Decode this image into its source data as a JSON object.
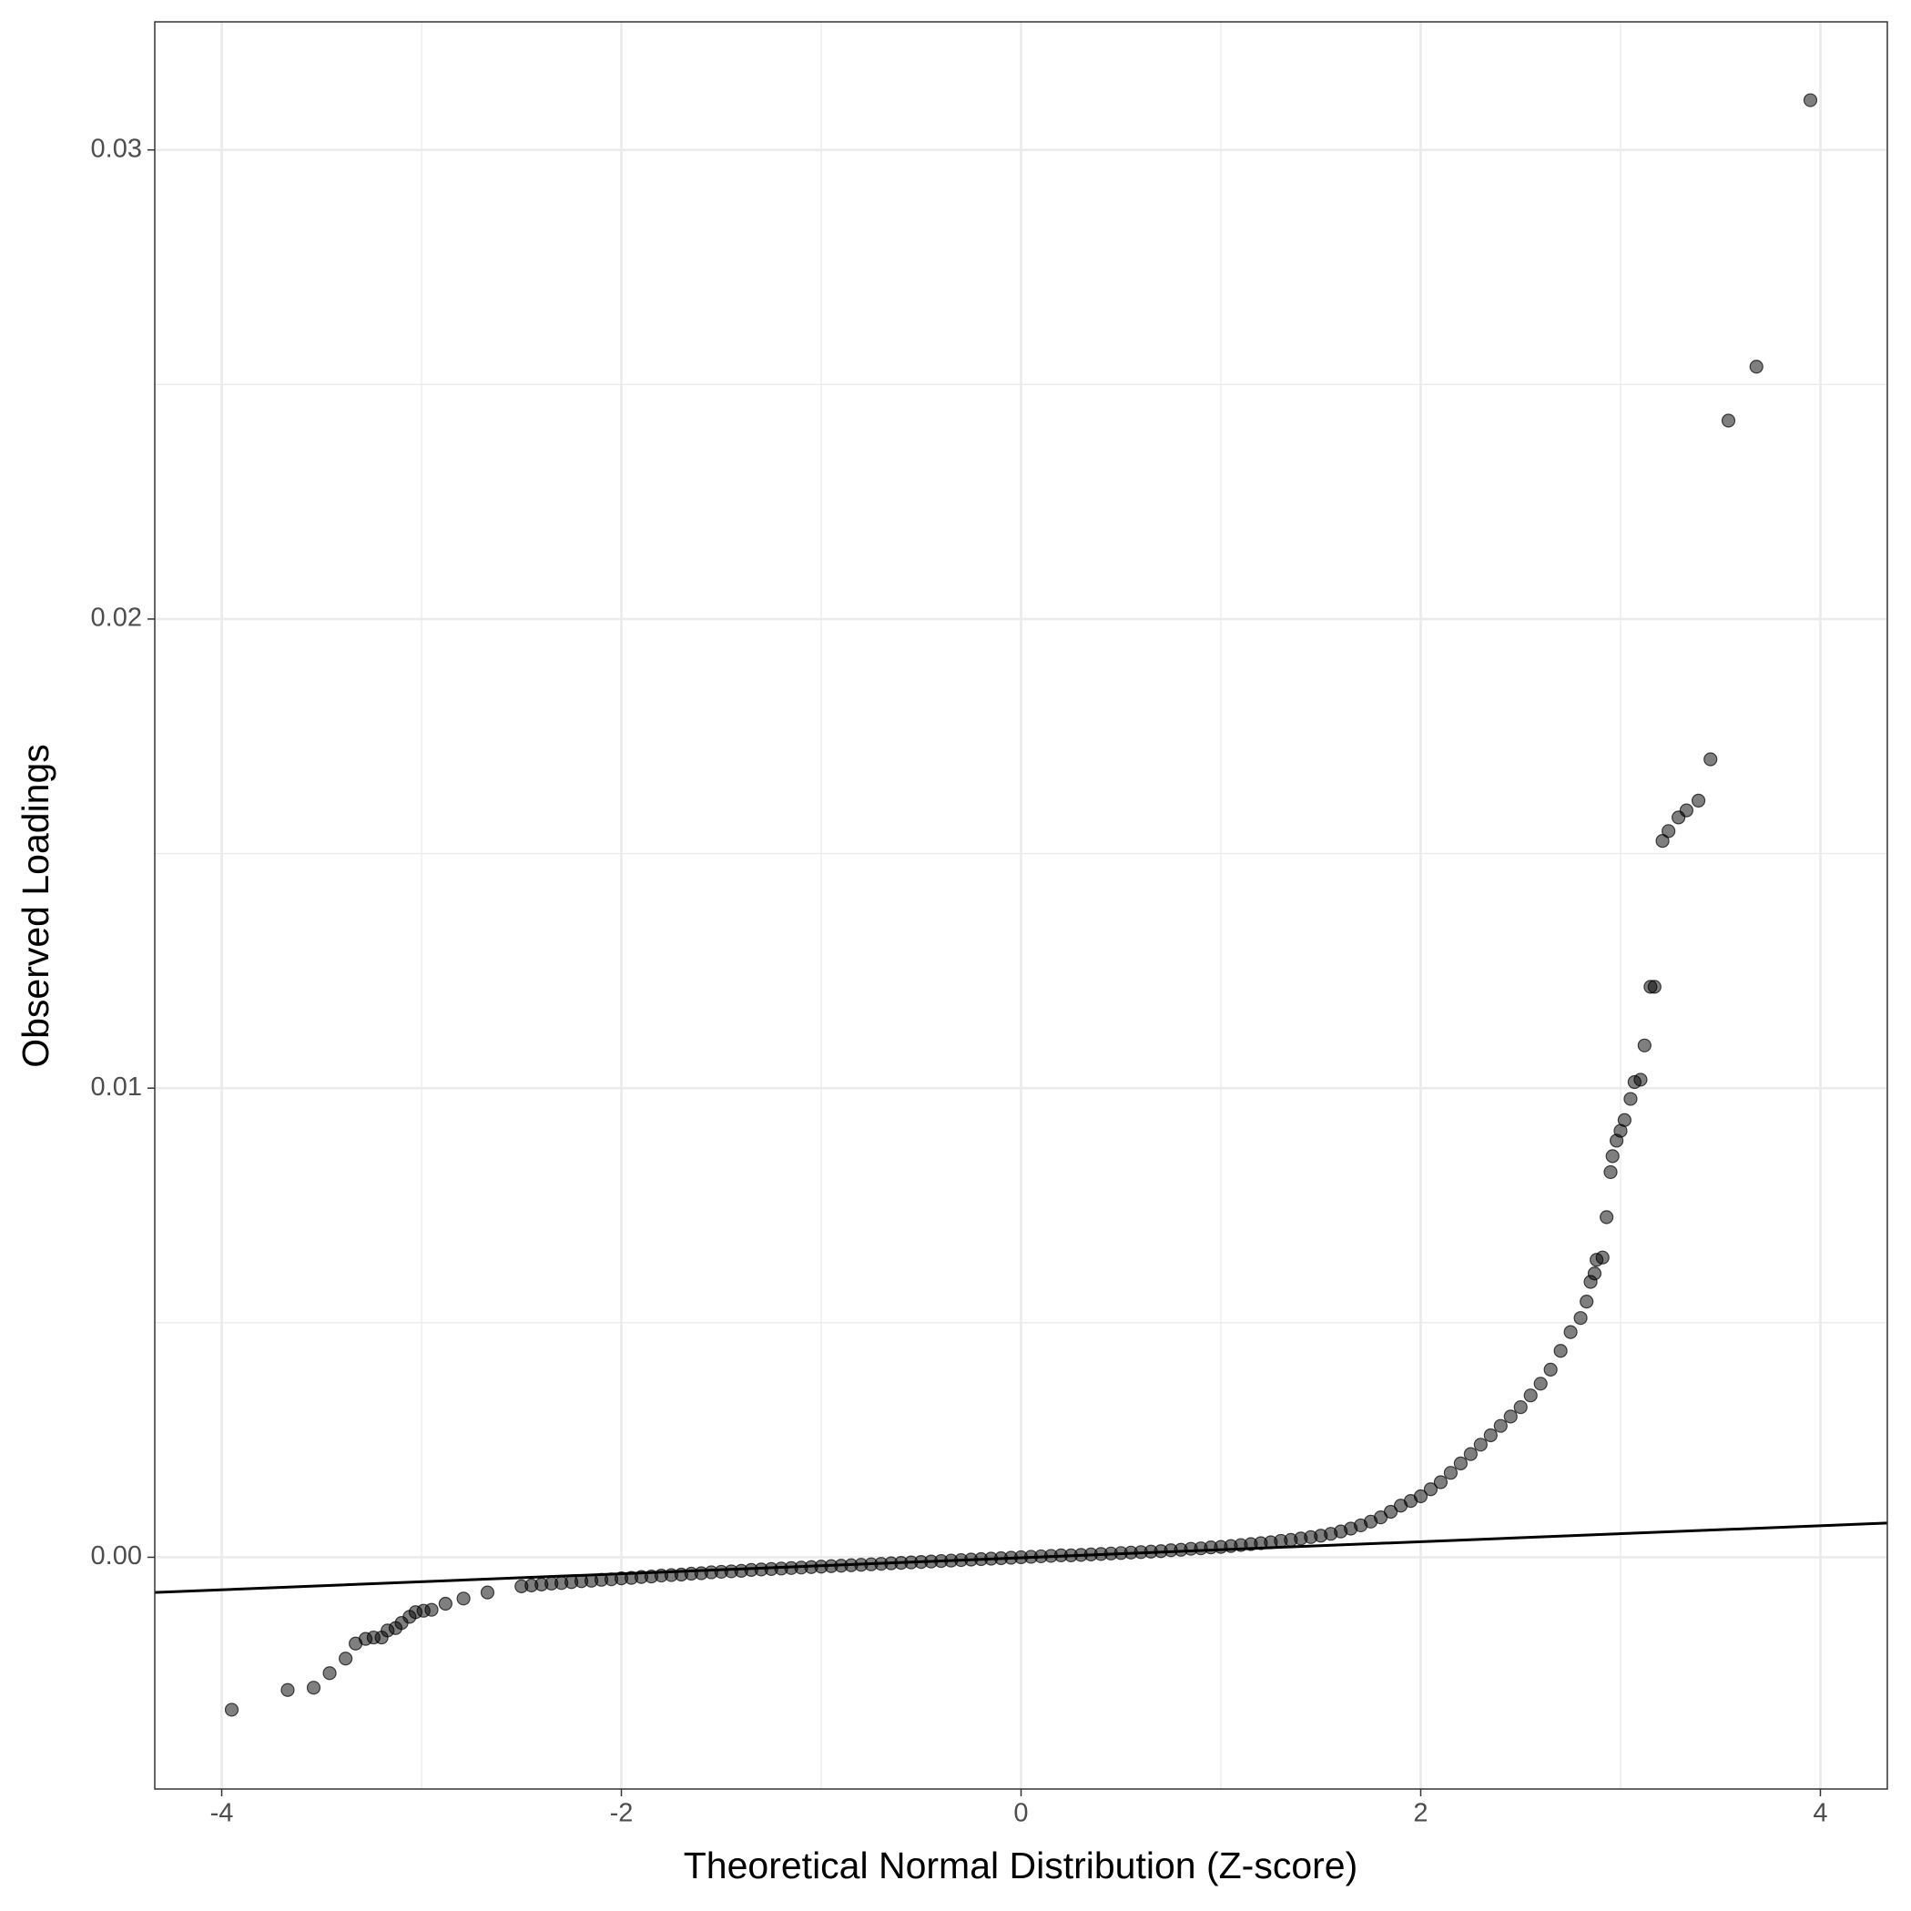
{
  "chart_data": {
    "type": "scatter",
    "x_label": "Theoretical Normal Distribution (Z-score)",
    "y_label": "Observed Loadings",
    "xlim": [
      -4.335,
      4.335
    ],
    "ylim": [
      -0.00494,
      0.03273
    ],
    "xticks": [
      -4,
      -2,
      0,
      2,
      4
    ],
    "yticks": [
      {
        "value": 0,
        "label": "0.00"
      },
      0.01,
      0.02,
      0.03
    ],
    "minor_xticks": [
      -3,
      -1,
      1,
      3
    ],
    "minor_yticks": [
      0.005,
      0.015,
      0.025
    ],
    "grid": true,
    "points": {
      "color": "#000000",
      "opacity": 0.5,
      "x": [
        -3.95,
        -3.67,
        -3.54,
        -3.46,
        -3.38,
        -3.33,
        -3.28,
        -3.24,
        -3.2,
        -3.17,
        -3.13,
        -3.1,
        -3.06,
        -3.03,
        -2.99,
        -2.95,
        -2.88,
        -2.79,
        -2.67,
        -2.5,
        -2.45,
        -2.4,
        -2.35,
        -2.3,
        -2.25,
        -2.2,
        -2.15,
        -2.1,
        -2.05,
        -2.0,
        -1.95,
        -1.9,
        -1.85,
        -1.8,
        -1.75,
        -1.7,
        -1.65,
        -1.6,
        -1.55,
        -1.5,
        -1.45,
        -1.4,
        -1.35,
        -1.3,
        -1.25,
        -1.2,
        -1.15,
        -1.1,
        -1.05,
        -1.0,
        -0.95,
        -0.9,
        -0.85,
        -0.8,
        -0.75,
        -0.7,
        -0.65,
        -0.6,
        -0.55,
        -0.5,
        -0.45,
        -0.4,
        -0.35,
        -0.3,
        -0.25,
        -0.2,
        -0.15,
        -0.1,
        -0.05,
        0.0,
        0.05,
        0.1,
        0.15,
        0.2,
        0.25,
        0.3,
        0.35,
        0.4,
        0.45,
        0.5,
        0.55,
        0.6,
        0.65,
        0.7,
        0.75,
        0.8,
        0.85,
        0.9,
        0.95,
        1.0,
        1.05,
        1.1,
        1.15,
        1.2,
        1.25,
        1.3,
        1.35,
        1.4,
        1.45,
        1.5,
        1.55,
        1.6,
        1.65,
        1.7,
        1.75,
        1.8,
        1.85,
        1.9,
        1.95,
        2.0,
        2.05,
        2.1,
        2.15,
        2.2,
        2.25,
        2.3,
        2.35,
        2.4,
        2.45,
        2.5,
        2.55,
        2.6,
        2.65,
        2.7,
        2.75,
        2.8,
        2.83,
        2.85,
        2.87,
        2.88,
        2.91,
        2.93,
        2.95,
        2.96,
        2.98,
        3.0,
        3.02,
        3.05,
        3.07,
        3.1,
        3.12,
        3.15,
        3.17,
        3.21,
        3.24,
        3.29,
        3.33,
        3.39,
        3.45,
        3.54,
        3.68,
        3.95
      ],
      "y": [
        -0.00325,
        -0.00283,
        -0.00278,
        -0.00247,
        -0.00216,
        -0.00184,
        -0.00174,
        -0.00171,
        -0.00171,
        -0.00156,
        -0.00151,
        -0.0014,
        -0.00127,
        -0.00117,
        -0.00114,
        -0.00112,
        -0.00099,
        -0.00088,
        -0.00075,
        -0.00062,
        -0.0006,
        -0.00058,
        -0.00056,
        -0.00055,
        -0.00053,
        -0.00051,
        -0.0005,
        -0.00048,
        -0.00047,
        -0.00045,
        -0.00044,
        -0.00042,
        -0.00041,
        -0.00039,
        -0.00038,
        -0.00037,
        -0.00035,
        -0.00034,
        -0.00032,
        -0.00031,
        -0.0003,
        -0.00029,
        -0.00027,
        -0.00026,
        -0.00025,
        -0.00024,
        -0.00023,
        -0.00022,
        -0.00021,
        -0.0002,
        -0.00019,
        -0.00018,
        -0.00017,
        -0.00016,
        -0.00015,
        -0.00014,
        -0.00013,
        -0.00012,
        -0.00011,
        -0.0001,
        -9e-05,
        -8e-05,
        -7e-05,
        -6e-05,
        -5e-05,
        -4e-05,
        -3e-05,
        -2e-05,
        -1e-05,
        0,
        1e-05,
        2e-05,
        3e-05,
        4e-05,
        4e-05,
        5e-05,
        6e-05,
        7e-05,
        8e-05,
        9e-05,
        0.0001,
        0.00011,
        0.00012,
        0.00013,
        0.00015,
        0.00016,
        0.00018,
        0.00019,
        0.00021,
        0.00022,
        0.00024,
        0.00026,
        0.00028,
        0.0003,
        0.00032,
        0.00035,
        0.00037,
        0.0004,
        0.00043,
        0.00046,
        0.0005,
        0.00055,
        0.00061,
        0.00068,
        0.00076,
        0.00085,
        0.00097,
        0.0011,
        0.0012,
        0.0013,
        0.00145,
        0.0016,
        0.0018,
        0.002,
        0.0022,
        0.0024,
        0.0026,
        0.0028,
        0.003,
        0.0032,
        0.00345,
        0.0037,
        0.004,
        0.0044,
        0.0048,
        0.0051,
        0.00545,
        0.00587,
        0.00605,
        0.00634,
        0.00639,
        0.00725,
        0.00821,
        0.00855,
        0.00888,
        0.00909,
        0.00932,
        0.00977,
        0.01013,
        0.01018,
        0.01091,
        0.01216,
        0.01216,
        0.01527,
        0.01548,
        0.01577,
        0.01592,
        0.01613,
        0.01701,
        0.02423,
        0.02538,
        0.03106
      ]
    },
    "reference_line": {
      "color": "#000000",
      "x": [
        -4.335,
        4.335
      ],
      "y": [
        -0.00075,
        0.00073
      ]
    }
  }
}
